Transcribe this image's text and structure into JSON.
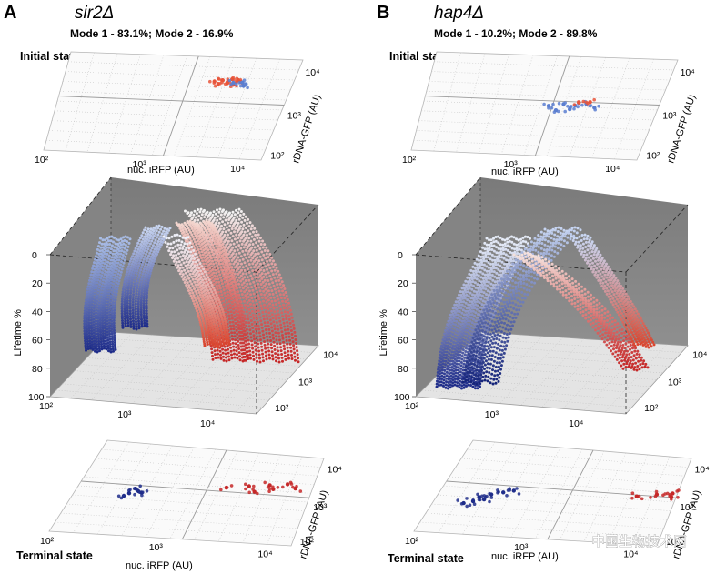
{
  "figure": {
    "panels": [
      {
        "letter": "A",
        "strain": "sir2Δ",
        "modes": "Mode 1 - 83.1%; Mode 2 - 16.9%",
        "initial_label": "Initial state",
        "terminal_label": "Terminal state"
      },
      {
        "letter": "B",
        "strain": "hap4Δ",
        "modes": "Mode 1 - 10.2%; Mode 2 - 89.8%",
        "initial_label": "Initial state",
        "terminal_label": "Terminal state"
      }
    ],
    "watermark": "中国生物技术网",
    "colors": {
      "mode1_blue": "#1f2d8a",
      "mode2_red": "#c62828",
      "start_light": "#f2f2f2",
      "box_gray": "#7d7d7d",
      "floor_gray": "#e3e3e3"
    }
  },
  "chart_data": [
    {
      "type": "scatter",
      "panel": "A",
      "view": "initial state (top-down projection)",
      "xlabel": "nuc. iRFP (AU)",
      "ylabel": "rDNA-GFP (AU)",
      "xticks": [
        "10²",
        "10³",
        "10⁴"
      ],
      "yticks": [
        "10²",
        "10³",
        "10⁴"
      ],
      "xscale": "log",
      "yscale": "log",
      "series": [
        {
          "color": "#e8553a",
          "points": [
            [
              3500,
              6000
            ],
            [
              4200,
              6500
            ],
            [
              5200,
              7000
            ],
            [
              6000,
              6800
            ],
            [
              4800,
              5600
            ],
            [
              5600,
              5200
            ],
            [
              3900,
              5300
            ],
            [
              6500,
              6200
            ]
          ]
        },
        {
          "color": "#5b7ed0",
          "points": [
            [
              5500,
              5800
            ],
            [
              6800,
              6000
            ],
            [
              7200,
              5000
            ]
          ]
        }
      ]
    },
    {
      "type": "scatter",
      "panel": "A",
      "view": "3D trajectories",
      "xlabel": "nuc. iRFP (AU)",
      "ylabel": "Lifetime %",
      "zlabel": "rDNA-GFP (AU)",
      "xticks": [
        "10²",
        "10³",
        "10⁴"
      ],
      "yticks": [
        "0",
        "20",
        "40",
        "60",
        "80",
        "100"
      ],
      "zticks": [
        "10²",
        "10³",
        "10⁴"
      ],
      "ylim": [
        0,
        100
      ],
      "series": [
        {
          "color": "#1f2d8a",
          "points": [
            [
              250,
              0
            ],
            [
              400,
              20
            ],
            [
              600,
              40
            ],
            [
              900,
              60
            ],
            [
              1100,
              80
            ]
          ]
        },
        {
          "color": "#c62828",
          "points": [
            [
              3000,
              0
            ],
            [
              5000,
              30
            ],
            [
              7000,
              55
            ],
            [
              9000,
              75
            ],
            [
              9500,
              80
            ]
          ]
        }
      ]
    },
    {
      "type": "scatter",
      "panel": "A",
      "view": "terminal state (top-down projection)",
      "xlabel": "nuc. iRFP (AU)",
      "ylabel": "rDNA-GFP (AU)",
      "xticks": [
        "10²",
        "10³",
        "10⁴"
      ],
      "yticks": [
        "10²",
        "10³",
        "10⁴"
      ],
      "series": [
        {
          "color": "#1f2d8a",
          "points": [
            [
              350,
              1200
            ],
            [
              420,
              1400
            ],
            [
              380,
              1600
            ],
            [
              460,
              1300
            ],
            [
              320,
              1000
            ]
          ]
        },
        {
          "color": "#c62828",
          "points": [
            [
              3000,
              2500
            ],
            [
              5000,
              3000
            ],
            [
              8000,
              3500
            ],
            [
              12000,
              4000
            ],
            [
              15000,
              3200
            ],
            [
              9000,
              2800
            ],
            [
              6000,
              2200
            ]
          ]
        }
      ]
    },
    {
      "type": "scatter",
      "panel": "B",
      "view": "initial state (top-down projection)",
      "xlabel": "nuc. iRFP (AU)",
      "ylabel": "rDNA-GFP (AU)",
      "xticks": [
        "10²",
        "10³",
        "10⁴"
      ],
      "yticks": [
        "10²",
        "10³",
        "10⁴"
      ],
      "series": [
        {
          "color": "#5b7ed0",
          "points": [
            [
              1800,
              1500
            ],
            [
              2500,
              1700
            ],
            [
              3300,
              1600
            ],
            [
              4200,
              1800
            ],
            [
              5200,
              1500
            ],
            [
              3000,
              1300
            ],
            [
              2200,
              1200
            ]
          ]
        },
        {
          "color": "#e8553a",
          "points": [
            [
              3500,
              1900
            ],
            [
              4500,
              2000
            ]
          ]
        }
      ]
    },
    {
      "type": "scatter",
      "panel": "B",
      "view": "3D trajectories",
      "xlabel": "nuc. iRFP (AU)",
      "ylabel": "Lifetime %",
      "zlabel": "rDNA-GFP (AU)",
      "xticks": [
        "10²",
        "10³",
        "10⁴"
      ],
      "yticks": [
        "0",
        "20",
        "40",
        "60",
        "80",
        "100"
      ],
      "zticks": [
        "10²",
        "10³",
        "10⁴"
      ],
      "ylim": [
        0,
        100
      ],
      "series": [
        {
          "color": "#1f2d8a",
          "points": [
            [
              600,
              0
            ],
            [
              500,
              30
            ],
            [
              400,
              60
            ],
            [
              300,
              80
            ],
            [
              250,
              90
            ]
          ]
        },
        {
          "color": "#c62828",
          "points": [
            [
              2500,
              20
            ],
            [
              5000,
              45
            ],
            [
              9000,
              65
            ],
            [
              14000,
              80
            ]
          ]
        }
      ]
    },
    {
      "type": "scatter",
      "panel": "B",
      "view": "terminal state (top-down projection)",
      "xlabel": "nuc. iRFP (AU)",
      "ylabel": "rDNA-GFP (AU)",
      "xticks": [
        "10²",
        "10³",
        "10⁴"
      ],
      "yticks": [
        "10²",
        "10³",
        "10⁴"
      ],
      "series": [
        {
          "color": "#1f2d8a",
          "points": [
            [
              200,
              600
            ],
            [
              260,
              900
            ],
            [
              330,
              1100
            ],
            [
              420,
              1300
            ],
            [
              520,
              1500
            ],
            [
              300,
              800
            ],
            [
              240,
              700
            ]
          ]
        },
        {
          "color": "#c62828",
          "points": [
            [
              9000,
              1800
            ],
            [
              14000,
              2200
            ],
            [
              20000,
              2500
            ],
            [
              25000,
              2000
            ]
          ]
        }
      ]
    }
  ]
}
